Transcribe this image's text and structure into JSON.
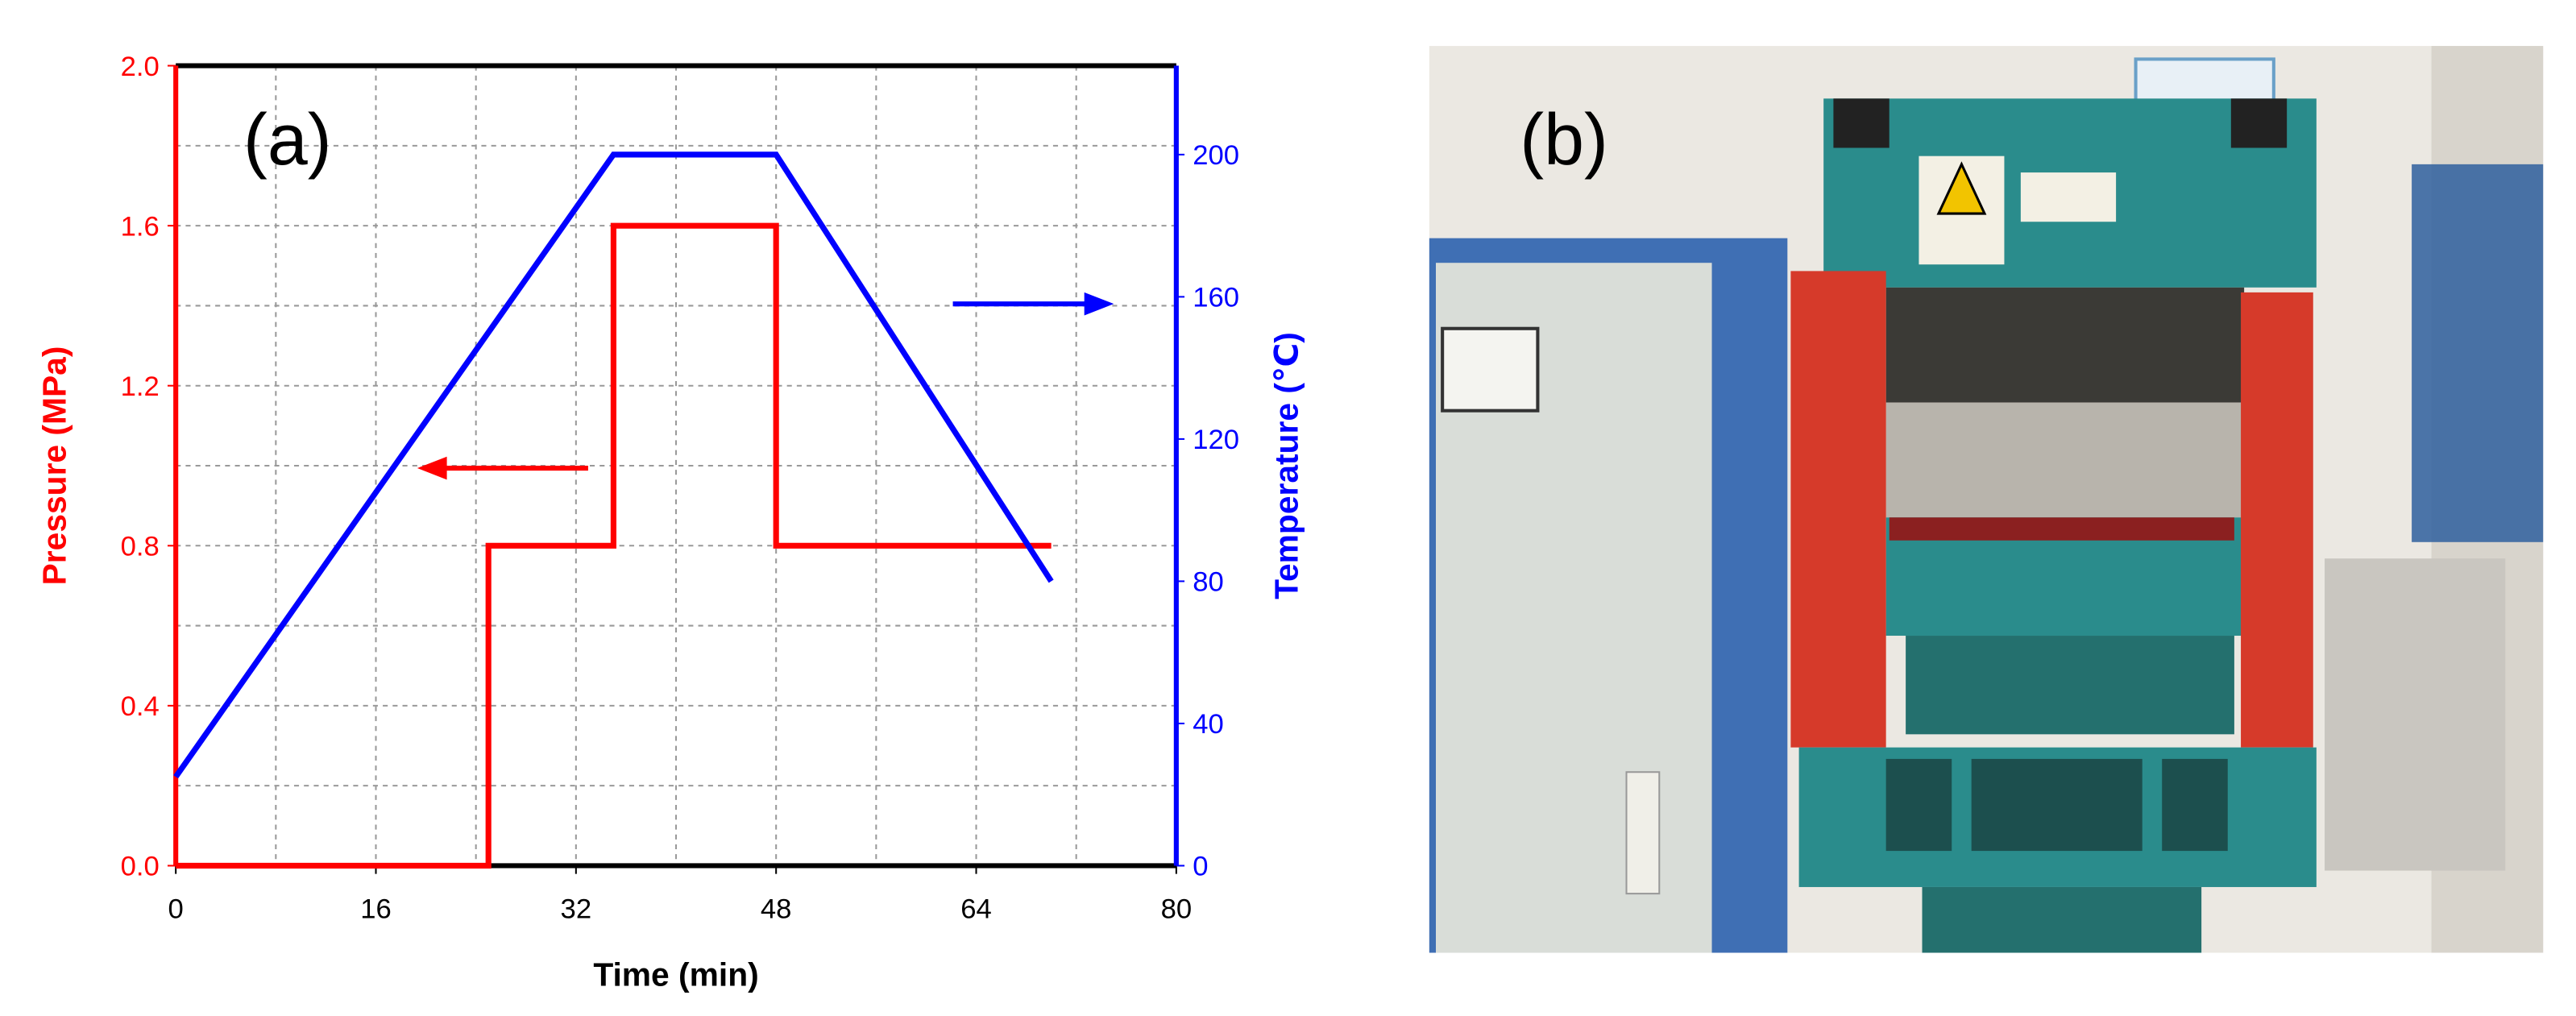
{
  "chart_data": {
    "type": "line",
    "panel_labels": [
      "(a)",
      "(b)"
    ],
    "x_label": "Time (min)",
    "y_label": "Pressure (MPa)",
    "y2_label": "Temperature (℃)",
    "xlim": [
      0,
      80
    ],
    "xticks": [
      0,
      16,
      32,
      48,
      64,
      80
    ],
    "ylim": [
      0,
      2.0
    ],
    "yticks": [
      {
        "value": 0,
        "label": "0.0"
      },
      0.4,
      0.8,
      1.2,
      1.6,
      {
        "value": 2,
        "label": "2.0"
      }
    ],
    "y2lim": [
      0,
      225
    ],
    "y2ticks": [
      0,
      40,
      80,
      120,
      160,
      200
    ],
    "grid": true,
    "series": [
      {
        "name": "Pressure",
        "color": "#ff0000",
        "x": [
          0,
          25,
          25,
          35,
          35,
          48,
          48,
          70
        ],
        "values": [
          0,
          0,
          0.8,
          0.8,
          1.6,
          1.6,
          0.8,
          0.8
        ]
      },
      {
        "name": "Temperature",
        "color": "#0000ff",
        "axis": "y2",
        "x": [
          0,
          35,
          48,
          70
        ],
        "values": [
          25,
          200,
          200,
          80
        ]
      }
    ]
  }
}
